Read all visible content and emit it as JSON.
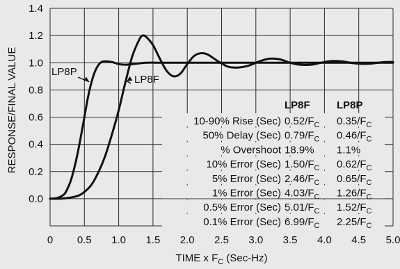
{
  "chart_data": {
    "type": "line",
    "title": "",
    "xlabel": {
      "main": "TIME x F",
      "sub": "C",
      "tail": " (Sec-Hz)"
    },
    "ylabel": "RESPONSE/FINAL VALUE",
    "xlim": [
      0,
      5.0
    ],
    "ylim": [
      -0.2,
      1.4
    ],
    "x_ticks": [
      "0",
      "0.5",
      "1.0",
      "1.5",
      "2.0",
      "2.5",
      "3.0",
      "3.5",
      "4.0",
      "4.5",
      "5.0"
    ],
    "y_ticks": [
      "0.0",
      "0.2",
      "0.4",
      "0.6",
      "0.8",
      "1.0",
      "1.2",
      "1.4"
    ],
    "grid": true,
    "background_color": "#e9e9eb",
    "line_color": "#111111",
    "series": [
      {
        "name": "LP8P",
        "x": [
          0,
          0.1,
          0.2,
          0.25,
          0.3,
          0.35,
          0.4,
          0.45,
          0.5,
          0.55,
          0.6,
          0.65,
          0.7,
          0.75,
          0.8,
          0.9,
          1.0,
          1.1,
          1.2,
          1.4,
          1.6,
          2.0,
          2.5,
          3.0,
          4.0,
          5.0
        ],
        "y": [
          0,
          0.005,
          0.03,
          0.07,
          0.13,
          0.22,
          0.33,
          0.46,
          0.6,
          0.74,
          0.85,
          0.93,
          0.98,
          1.005,
          1.01,
          1.005,
          0.99,
          0.985,
          0.99,
          1.0,
          1.0,
          1.0,
          1.0,
          1.0,
          1.0,
          1.0
        ]
      },
      {
        "name": "LP8F",
        "x": [
          0,
          0.2,
          0.4,
          0.5,
          0.6,
          0.7,
          0.8,
          0.9,
          1.0,
          1.1,
          1.2,
          1.3,
          1.35,
          1.4,
          1.5,
          1.6,
          1.7,
          1.8,
          1.9,
          2.0,
          2.1,
          2.2,
          2.3,
          2.45,
          2.6,
          2.75,
          2.9,
          3.05,
          3.2,
          3.35,
          3.5,
          3.65,
          3.8,
          3.95,
          4.1,
          4.25,
          4.4,
          4.55,
          4.7,
          4.85,
          5.0
        ],
        "y": [
          0,
          0.002,
          0.02,
          0.05,
          0.1,
          0.19,
          0.31,
          0.47,
          0.65,
          0.86,
          1.05,
          1.17,
          1.2,
          1.19,
          1.13,
          1.03,
          0.94,
          0.9,
          0.92,
          0.99,
          1.05,
          1.07,
          1.06,
          1.01,
          0.97,
          0.965,
          0.98,
          1.01,
          1.03,
          1.025,
          1.0,
          0.985,
          0.985,
          1.0,
          1.012,
          1.01,
          0.998,
          0.992,
          0.995,
          1.004,
          1.006
        ]
      }
    ],
    "annotations": [
      {
        "text": "LP8P",
        "target_series": "LP8P",
        "arrow_to": [
          0.6,
          0.87
        ]
      },
      {
        "text": "LP8F",
        "target_series": "LP8F",
        "arrow_to": [
          1.09,
          0.88
        ]
      }
    ],
    "table": {
      "columns": [
        "LP8F",
        "LP8P"
      ],
      "rows": [
        {
          "label": "10-90% Rise (Sec)",
          "lp8f": "0.52/F",
          "lp8p": "0.35/F",
          "sub": "C"
        },
        {
          "label": "50% Delay (Sec)",
          "lp8f": "0.79/F",
          "lp8p": "0.46/F",
          "sub": "C"
        },
        {
          "label": "% Overshoot",
          "lp8f": "18.9%",
          "lp8p": "1.1%",
          "sub": ""
        },
        {
          "label": "10% Error (Sec)",
          "lp8f": "1.50/F",
          "lp8p": "0.62/F",
          "sub": "C"
        },
        {
          "label": "5% Error (Sec)",
          "lp8f": "2.46/F",
          "lp8p": "0.65/F",
          "sub": "C"
        },
        {
          "label": "1% Error (Sec)",
          "lp8f": "4.03/F",
          "lp8p": "1.26/F",
          "sub": "C"
        },
        {
          "label": "0.5% Error (Sec)",
          "lp8f": "5.01/F",
          "lp8p": "1.52/F",
          "sub": "C"
        },
        {
          "label": "0.1% Error (Sec)",
          "lp8f": "6.99/F",
          "lp8p": "2.25/F",
          "sub": "C"
        }
      ]
    }
  }
}
